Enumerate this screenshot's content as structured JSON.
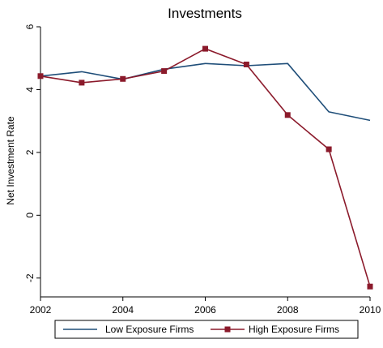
{
  "chart_data": {
    "type": "line",
    "title": "Investments",
    "xlabel": "",
    "ylabel": "Net Investment Rate",
    "x": [
      2002,
      2003,
      2004,
      2005,
      2006,
      2007,
      2008,
      2009,
      2010
    ],
    "xlim": [
      2002,
      2010
    ],
    "ylim": [
      -2.6,
      6.0
    ],
    "x_ticks": [
      2002,
      2004,
      2006,
      2008,
      2010
    ],
    "y_ticks": [
      -2,
      0,
      2,
      4,
      6
    ],
    "x_tick_labels": [
      "2002",
      "2004",
      "2006",
      "2008",
      "2010"
    ],
    "y_tick_labels": [
      "-2",
      "0",
      "2",
      "4",
      "6"
    ],
    "grid": false,
    "legend_position": "bottom",
    "series": [
      {
        "name": "Low Exposure Firms",
        "color": "#1f4e79",
        "marker": "none",
        "values": [
          4.43,
          4.57,
          4.33,
          4.65,
          4.83,
          4.76,
          4.83,
          3.29,
          3.02
        ]
      },
      {
        "name": "High Exposure Firms",
        "color": "#8b1a2b",
        "marker": "square",
        "values": [
          4.43,
          4.22,
          4.34,
          4.59,
          5.3,
          4.8,
          3.19,
          2.1,
          -2.27
        ]
      }
    ]
  }
}
